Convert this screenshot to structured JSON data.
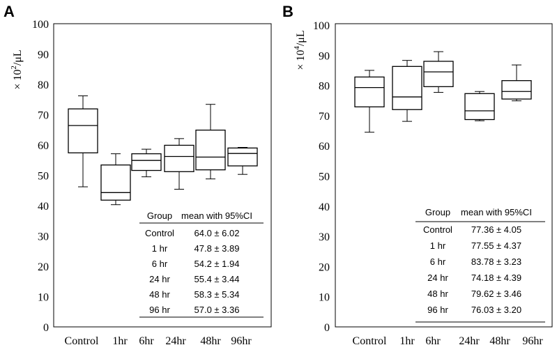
{
  "chart_data": [
    {
      "type": "box",
      "panel": "A",
      "ylabel_prefix": "× 10",
      "ylabel_exp": "2",
      "ylabel_unit": "/μL",
      "ylim": [
        0,
        100
      ],
      "yticks": [
        "0",
        "10",
        "20",
        "30",
        "40",
        "50",
        "60",
        "70",
        "80",
        "90",
        "100"
      ],
      "categories": [
        "Control",
        "1hr",
        "6hr",
        "24hr",
        "48hr",
        "96hr"
      ],
      "boxes": [
        {
          "whisker_low": 46.2,
          "q1": 57.4,
          "median": 66.4,
          "q3": 71.9,
          "whisker_high": 76.2
        },
        {
          "whisker_low": 40.3,
          "q1": 41.8,
          "median": 44.3,
          "q3": 53.4,
          "whisker_high": 57.1
        },
        {
          "whisker_low": 49.5,
          "q1": 51.6,
          "median": 54.9,
          "q3": 57.1,
          "whisker_high": 58.6
        },
        {
          "whisker_low": 45.4,
          "q1": 51.2,
          "median": 56.2,
          "q3": 59.9,
          "whisker_high": 62.1
        },
        {
          "whisker_low": 48.8,
          "q1": 51.8,
          "median": 56.0,
          "q3": 64.9,
          "whisker_high": 73.4
        },
        {
          "whisker_low": 50.3,
          "q1": 53.1,
          "median": 57.2,
          "q3": 59.0,
          "whisker_high": 59.2
        }
      ],
      "table": {
        "headers": [
          "Group",
          "mean with 95%CI"
        ],
        "rows": [
          [
            "Control",
            "64.0 ± 6.02"
          ],
          [
            "1 hr",
            "47.8 ± 3.89"
          ],
          [
            "6 hr",
            "54.2 ± 1.94"
          ],
          [
            "24 hr",
            "55.4 ± 3.44"
          ],
          [
            "48 hr",
            "58.3 ± 5.34"
          ],
          [
            "96 hr",
            "57.0 ± 3.36"
          ]
        ]
      }
    },
    {
      "type": "box",
      "panel": "B",
      "ylabel_prefix": "× 10",
      "ylabel_exp": "4",
      "ylabel_unit": "/μL",
      "ylim": [
        0,
        100
      ],
      "yticks": [
        "0",
        "10",
        "20",
        "30",
        "40",
        "50",
        "60",
        "70",
        "80",
        "90",
        "100"
      ],
      "categories": [
        "Control",
        "1hr",
        "6hr",
        "24hr",
        "48hr",
        "96hr"
      ],
      "boxes": [
        {
          "whisker_low": 64.5,
          "q1": 72.9,
          "median": 79.3,
          "q3": 82.8,
          "whisker_high": 85.0
        },
        {
          "whisker_low": 68.1,
          "q1": 72.0,
          "median": 76.2,
          "q3": 86.3,
          "whisker_high": 88.3
        },
        {
          "whisker_low": 77.7,
          "q1": 79.6,
          "median": 84.5,
          "q3": 88.0,
          "whisker_high": 91.2
        },
        {
          "whisker_low": 68.3,
          "q1": 68.7,
          "median": 71.6,
          "q3": 77.3,
          "whisker_high": 78.0
        },
        {
          "whisker_low": 74.9,
          "q1": 75.5,
          "median": 78.0,
          "q3": 81.6,
          "whisker_high": 86.8
        },
        {
          "whisker_low": null,
          "q1": null,
          "median": null,
          "q3": null,
          "whisker_high": null
        }
      ],
      "table": {
        "headers": [
          "Group",
          "mean with 95%CI"
        ],
        "rows": [
          [
            "Control",
            "77.36 ± 4.05"
          ],
          [
            "1 hr",
            "77.55 ± 4.37"
          ],
          [
            "6 hr",
            "83.78 ± 3.23"
          ],
          [
            "24 hr",
            "74.18 ± 4.39"
          ],
          [
            "48 hr",
            "79.62 ± 3.46"
          ],
          [
            "96 hr",
            "76.03 ± 3.20"
          ]
        ]
      }
    }
  ]
}
